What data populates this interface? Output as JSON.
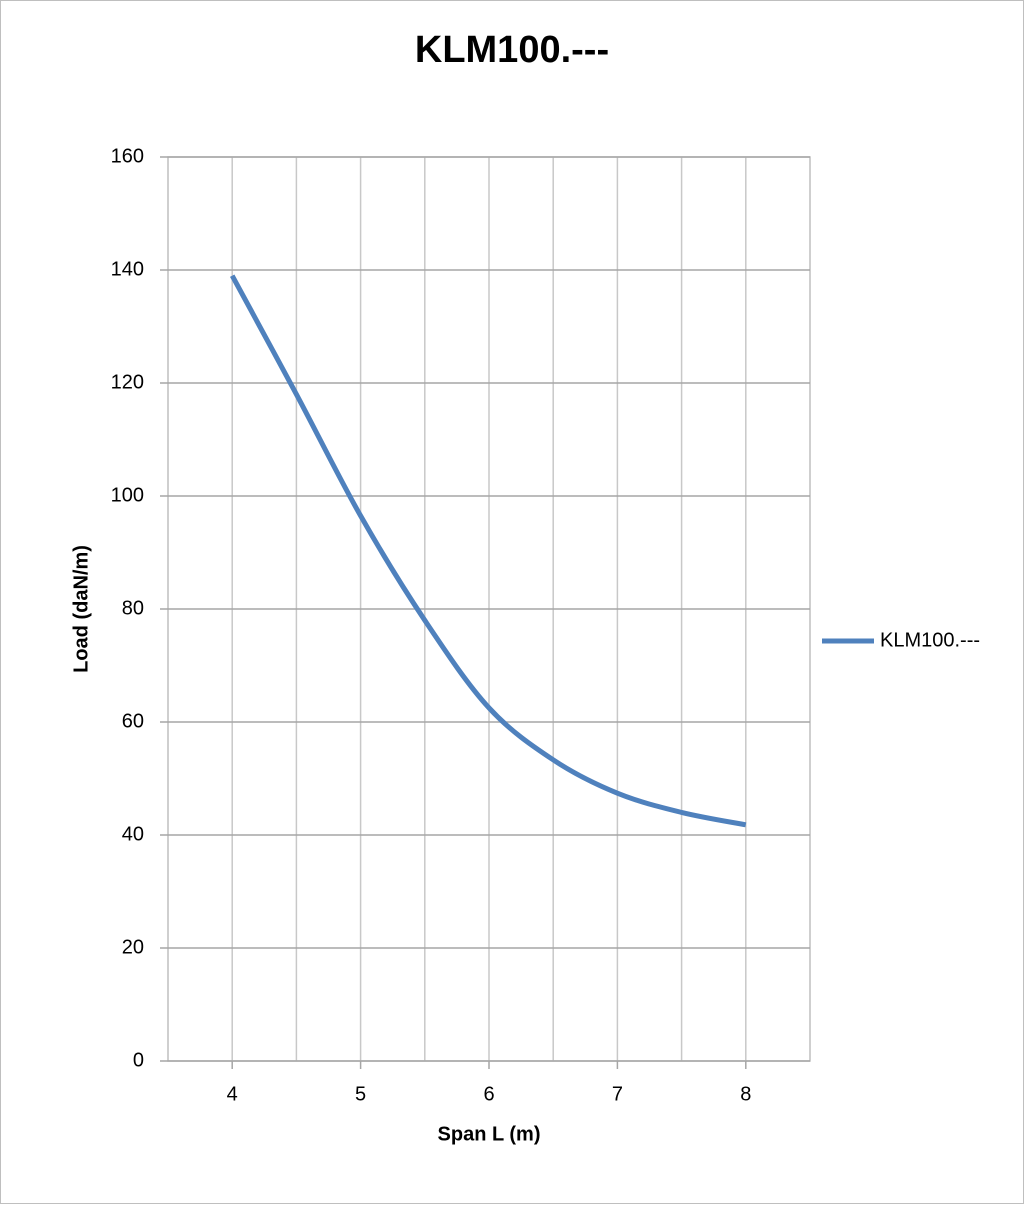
{
  "chart_data": {
    "type": "line",
    "title": "KLM100.---",
    "x_label": "Span L (m)",
    "y_label": "Load (daN/m)",
    "x": [
      4,
      4.5,
      5,
      5.5,
      6,
      6.5,
      7,
      7.5,
      8
    ],
    "series": [
      {
        "name": "KLM100.---",
        "color": "#4f81bd",
        "values": [
          139,
          118,
          96.5,
          78,
          62.5,
          53.3,
          47.4,
          44,
          41.8
        ]
      }
    ],
    "xlim": [
      3.5,
      8.5
    ],
    "xticks": [
      4,
      5,
      6,
      7,
      8
    ],
    "ylim": [
      0,
      160
    ],
    "yticks": [
      0,
      20,
      40,
      60,
      80,
      100,
      120,
      140,
      160
    ],
    "grid": true,
    "smooth": true,
    "legend": "right"
  }
}
